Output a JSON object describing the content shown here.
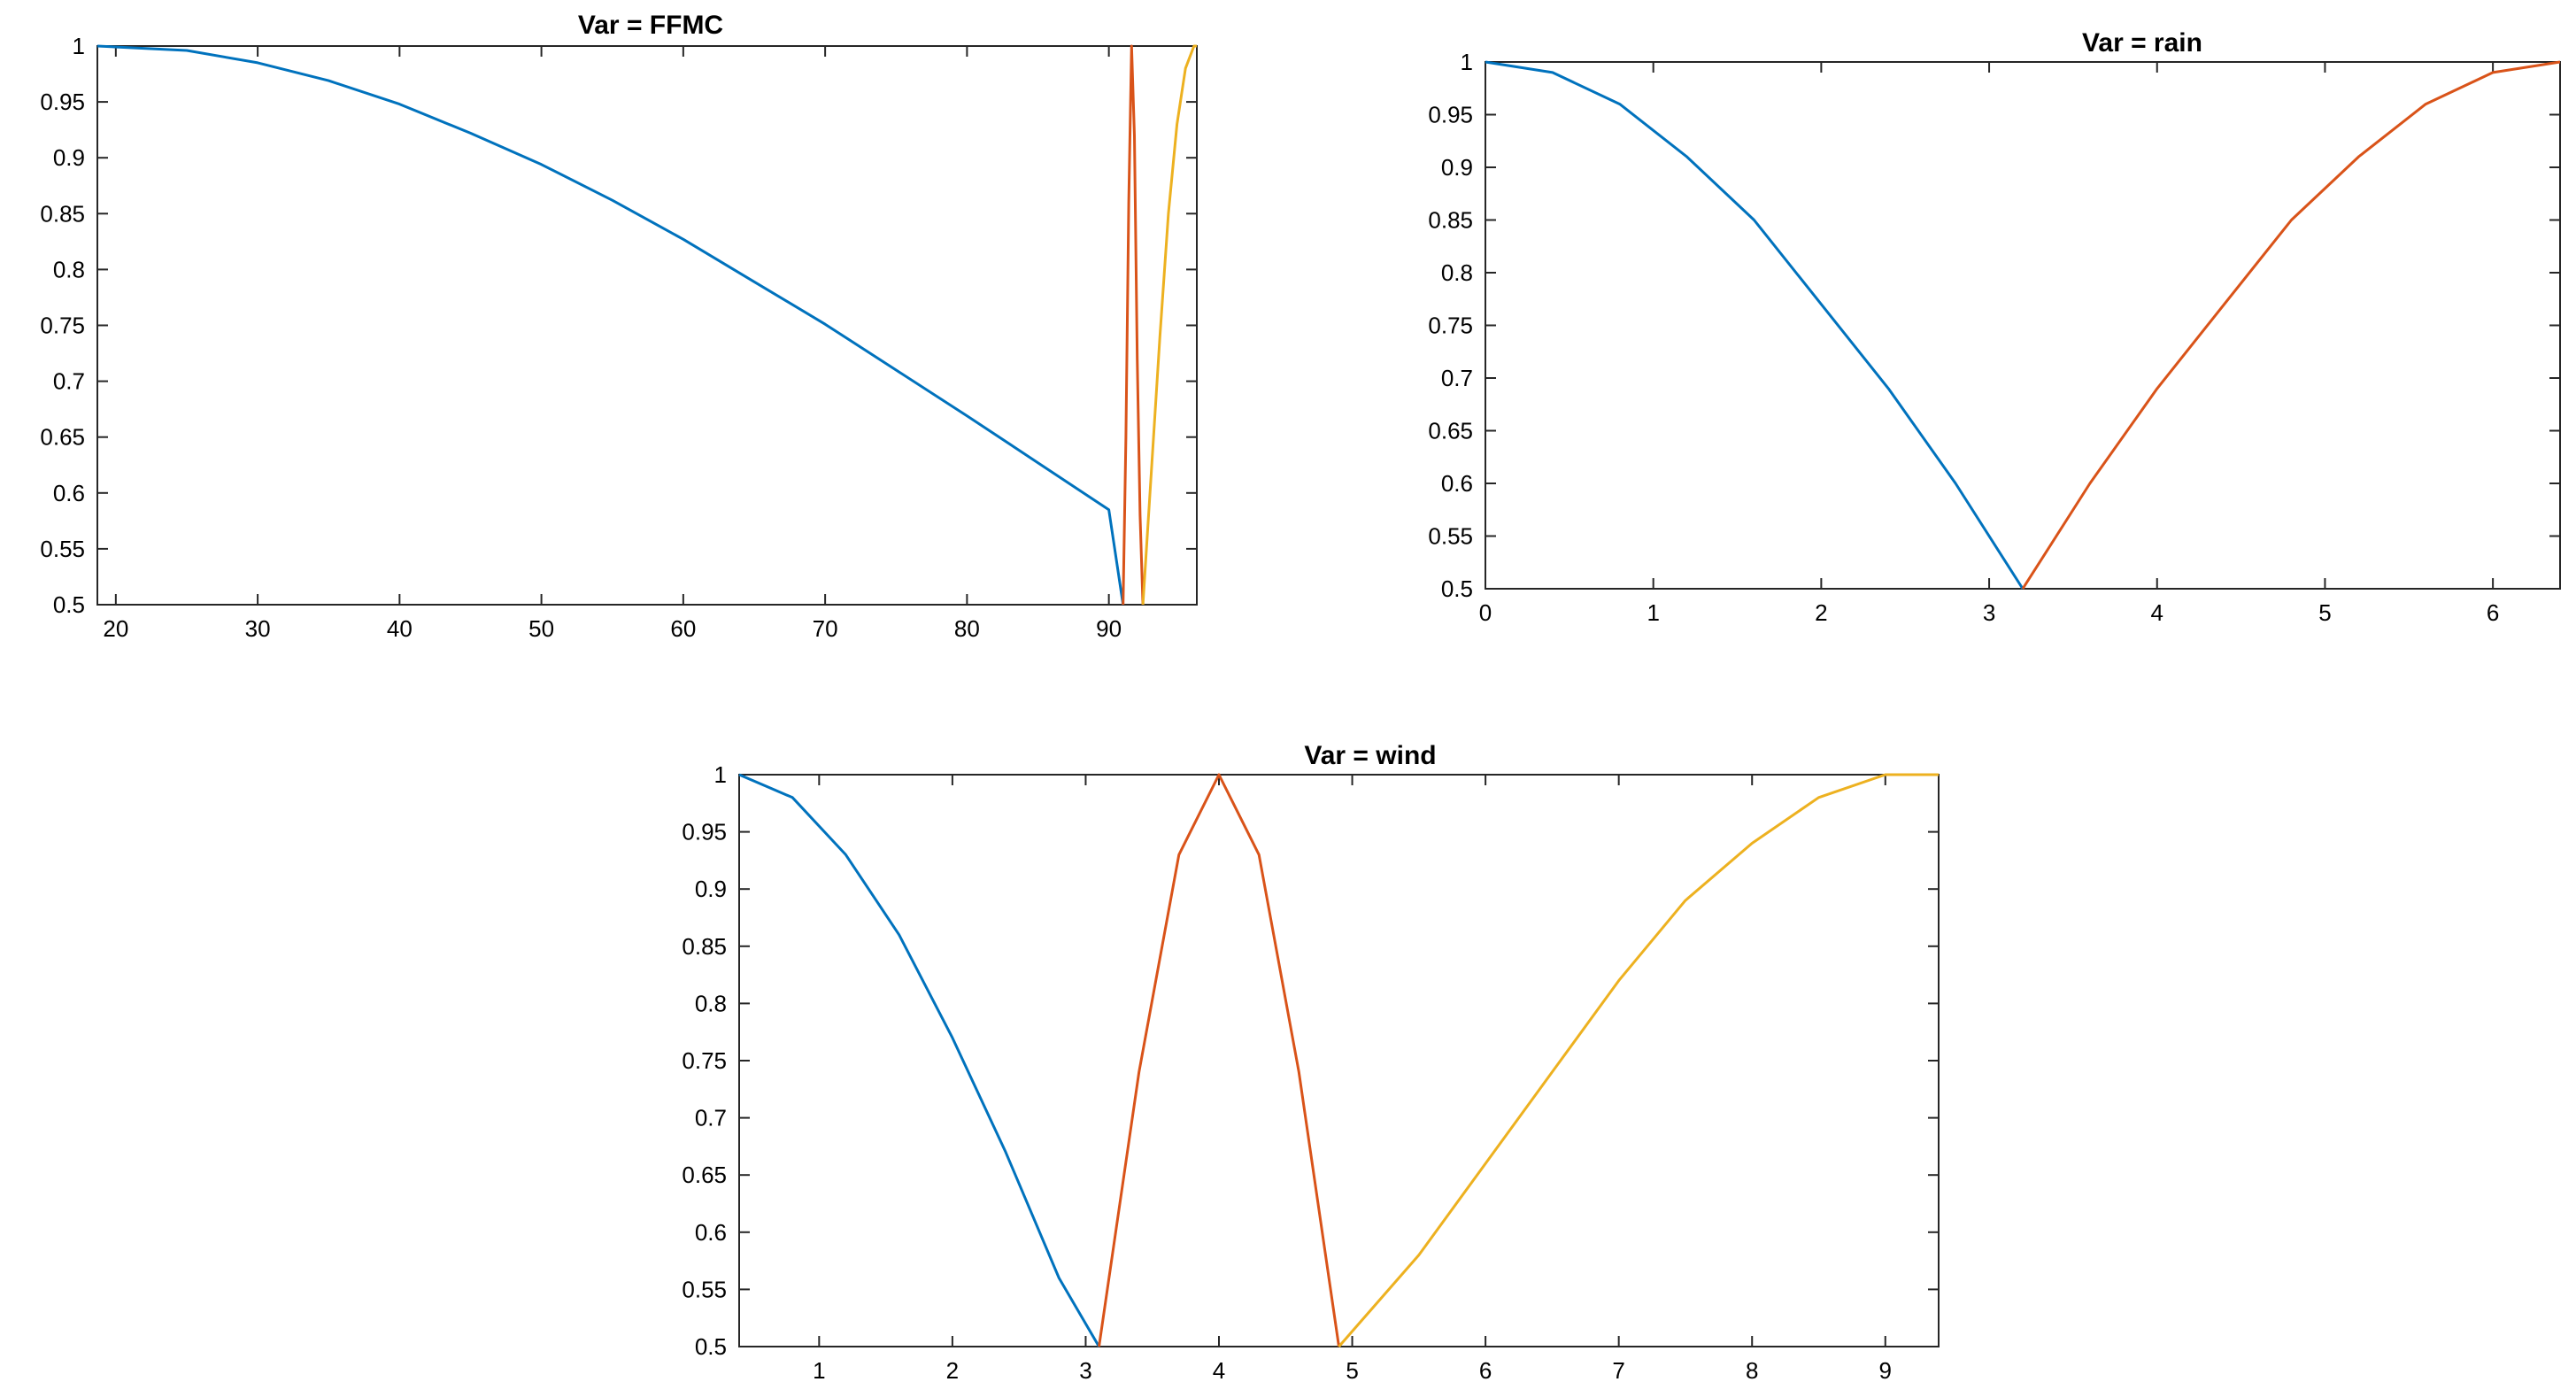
{
  "chart_data": [
    {
      "type": "line",
      "title": "Var = FFMC",
      "xlabel": "",
      "ylabel": "",
      "xlim": [
        18.7,
        96.2
      ],
      "ylim": [
        0.5,
        1
      ],
      "xticks": [
        20,
        30,
        40,
        50,
        60,
        70,
        80,
        90
      ],
      "xtick_labels": [
        "20",
        "30",
        "40",
        "50",
        "60",
        "70",
        "80",
        "90"
      ],
      "yticks": [
        0.5,
        0.55,
        0.6,
        0.65,
        0.7,
        0.75,
        0.8,
        0.85,
        0.9,
        0.95,
        1
      ],
      "ytick_labels": [
        "0.5",
        "0.55",
        "0.6",
        "0.65",
        "0.7",
        "0.75",
        "0.8",
        "0.85",
        "0.9",
        "0.95",
        "1"
      ],
      "grid": false,
      "series": [
        {
          "color": "#0072BD",
          "x": [
            18.7,
            25,
            30,
            35,
            40,
            45,
            50,
            55,
            60,
            65,
            70,
            75,
            80,
            85,
            90,
            91.0
          ],
          "y": [
            1.0,
            0.996,
            0.985,
            0.969,
            0.948,
            0.922,
            0.894,
            0.862,
            0.827,
            0.789,
            0.751,
            0.71,
            0.669,
            0.627,
            0.585,
            0.5
          ]
        },
        {
          "color": "#D95319",
          "x": [
            91.0,
            91.2,
            91.4,
            91.6,
            91.8,
            92.0,
            92.2,
            92.4
          ],
          "y": [
            0.5,
            0.65,
            0.86,
            1.0,
            0.92,
            0.72,
            0.58,
            0.5
          ]
        },
        {
          "color": "#EDB120",
          "x": [
            92.4,
            93.0,
            93.6,
            94.2,
            94.8,
            95.4,
            96.0,
            96.2
          ],
          "y": [
            0.5,
            0.62,
            0.74,
            0.85,
            0.93,
            0.98,
            1.0,
            1.0
          ]
        }
      ]
    },
    {
      "type": "line",
      "title": "Var = rain",
      "xlabel": "",
      "ylabel": "",
      "xlim": [
        0,
        6.4
      ],
      "ylim": [
        0.5,
        1
      ],
      "xticks": [
        0,
        1,
        2,
        3,
        4,
        5,
        6
      ],
      "xtick_labels": [
        "0",
        "1",
        "2",
        "3",
        "4",
        "5",
        "6"
      ],
      "yticks": [
        0.5,
        0.55,
        0.6,
        0.65,
        0.7,
        0.75,
        0.8,
        0.85,
        0.9,
        0.95,
        1
      ],
      "ytick_labels": [
        "0.5",
        "0.55",
        "0.6",
        "0.65",
        "0.7",
        "0.75",
        "0.8",
        "0.85",
        "0.9",
        "0.95",
        "1"
      ],
      "grid": false,
      "series": [
        {
          "color": "#0072BD",
          "x": [
            0,
            0.4,
            0.8,
            1.2,
            1.6,
            2.0,
            2.4,
            2.8,
            3.2
          ],
          "y": [
            1.0,
            0.99,
            0.96,
            0.91,
            0.85,
            0.77,
            0.69,
            0.6,
            0.5
          ]
        },
        {
          "color": "#D95319",
          "x": [
            3.2,
            3.6,
            4.0,
            4.4,
            4.8,
            5.2,
            5.6,
            6.0,
            6.4
          ],
          "y": [
            0.5,
            0.6,
            0.69,
            0.77,
            0.85,
            0.91,
            0.96,
            0.99,
            1.0
          ]
        }
      ]
    },
    {
      "type": "line",
      "title": "Var = wind",
      "xlabel": "",
      "ylabel": "",
      "xlim": [
        0.4,
        9.4
      ],
      "ylim": [
        0.5,
        1
      ],
      "xticks": [
        1,
        2,
        3,
        4,
        5,
        6,
        7,
        8,
        9
      ],
      "xtick_labels": [
        "1",
        "2",
        "3",
        "4",
        "5",
        "6",
        "7",
        "8",
        "9"
      ],
      "yticks": [
        0.5,
        0.55,
        0.6,
        0.65,
        0.7,
        0.75,
        0.8,
        0.85,
        0.9,
        0.95,
        1
      ],
      "ytick_labels": [
        "0.5",
        "0.55",
        "0.6",
        "0.65",
        "0.7",
        "0.75",
        "0.8",
        "0.85",
        "0.9",
        "0.95",
        "1"
      ],
      "grid": false,
      "series": [
        {
          "color": "#0072BD",
          "x": [
            0.4,
            0.8,
            1.2,
            1.6,
            2.0,
            2.4,
            2.8,
            3.1
          ],
          "y": [
            1.0,
            0.98,
            0.93,
            0.86,
            0.77,
            0.67,
            0.56,
            0.5
          ]
        },
        {
          "color": "#D95319",
          "x": [
            3.1,
            3.4,
            3.7,
            4.0,
            4.3,
            4.6,
            4.9
          ],
          "y": [
            0.5,
            0.74,
            0.93,
            1.0,
            0.93,
            0.74,
            0.5
          ]
        },
        {
          "color": "#EDB120",
          "x": [
            4.9,
            5.5,
            6.0,
            6.5,
            7.0,
            7.5,
            8.0,
            8.5,
            9.0,
            9.4
          ],
          "y": [
            0.5,
            0.58,
            0.66,
            0.74,
            0.82,
            0.89,
            0.94,
            0.98,
            1.0,
            1.0
          ]
        }
      ]
    }
  ]
}
